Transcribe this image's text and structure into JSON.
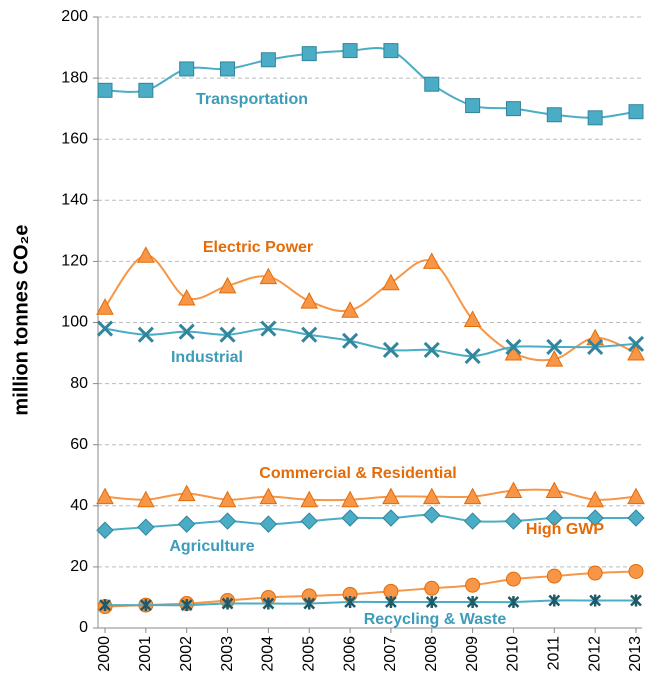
{
  "chart_data": {
    "type": "line",
    "y_label": "million tonnes CO₂e",
    "categories": [
      "2000",
      "2001",
      "2002",
      "2003",
      "2004",
      "2005",
      "2006",
      "2007",
      "2008",
      "2009",
      "2010",
      "2011",
      "2012",
      "2013"
    ],
    "ylim": [
      0,
      200
    ],
    "yticks": [
      0,
      20,
      40,
      60,
      80,
      100,
      120,
      140,
      160,
      180,
      200
    ],
    "grid": true,
    "series": [
      {
        "name": "Transportation",
        "color": "#4bacc6",
        "marker": "square",
        "values": [
          176,
          176,
          183,
          183,
          186,
          188,
          189,
          189,
          178,
          171,
          170,
          168,
          167,
          169
        ]
      },
      {
        "name": "Electric Power",
        "color": "#f79646",
        "marker": "triangle",
        "values": [
          105,
          122,
          108,
          112,
          115,
          107,
          104,
          113,
          120,
          101,
          90,
          88,
          95,
          90
        ]
      },
      {
        "name": "Industrial",
        "color": "#4bacc6",
        "marker": "x",
        "values": [
          98,
          96,
          97,
          96,
          98,
          96,
          94,
          91,
          91,
          89,
          92,
          92,
          92,
          93
        ]
      },
      {
        "name": "Commercial & Residential",
        "color": "#f79646",
        "marker": "triangle",
        "values": [
          43,
          42,
          44,
          42,
          43,
          42,
          42,
          43,
          43,
          43,
          45,
          45,
          42,
          43
        ]
      },
      {
        "name": "Agriculture",
        "color": "#4bacc6",
        "marker": "diamond",
        "values": [
          32,
          33,
          34,
          35,
          34,
          35,
          36,
          36,
          37,
          35,
          35,
          36,
          36,
          36
        ]
      },
      {
        "name": "High GWP",
        "color": "#f79646",
        "marker": "circle",
        "values": [
          7,
          7.5,
          8,
          9,
          10,
          10.5,
          11,
          12,
          13,
          14,
          16,
          17,
          18,
          18.5
        ]
      },
      {
        "name": "Recycling & Waste",
        "color": "#4bacc6",
        "marker": "asterisk",
        "values": [
          7.5,
          7.5,
          7.5,
          8,
          8,
          8,
          8.5,
          8.5,
          8.5,
          8.5,
          8.5,
          9,
          9,
          9
        ]
      }
    ]
  }
}
